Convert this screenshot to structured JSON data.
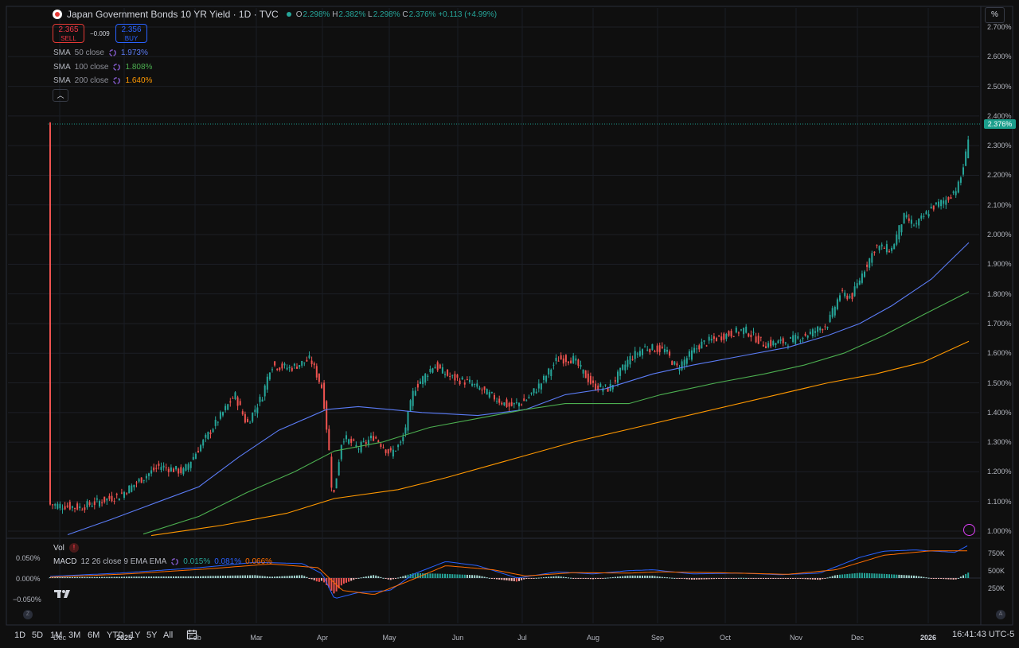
{
  "header": {
    "title": "Japan Government Bonds 10 YR Yield · 1D · TVC",
    "ohlc": {
      "o_label": "O",
      "o": "2.298%",
      "h_label": "H",
      "h": "2.382%",
      "l_label": "L",
      "l": "2.298%",
      "c_label": "C",
      "c": "2.376%",
      "change": "+0.113 (+4.99%)"
    }
  },
  "trade": {
    "sell_price": "2.365",
    "sell_label": "SELL",
    "spread": "−0.009",
    "buy_price": "2.356",
    "buy_label": "BUY"
  },
  "indicators": [
    {
      "name": "SMA",
      "params": "50 close",
      "value": "1.973%",
      "color": "#5b7cf6"
    },
    {
      "name": "SMA",
      "params": "100 close",
      "value": "1.808%",
      "color": "#4caf50"
    },
    {
      "name": "SMA",
      "params": "200 close",
      "value": "1.640%",
      "color": "#ff9800"
    }
  ],
  "price_axis": {
    "unit_button": "%",
    "labels": [
      "2.700%",
      "2.600%",
      "2.500%",
      "2.400%",
      "2.300%",
      "2.200%",
      "2.100%",
      "2.000%",
      "1.900%",
      "1.800%",
      "1.700%",
      "1.600%",
      "1.500%",
      "1.400%",
      "1.300%",
      "1.200%",
      "1.100%",
      "1.000%"
    ],
    "last_price": "2.376%"
  },
  "volume_pane": {
    "label": "Vol",
    "axis": [
      "750K",
      "500K",
      "250K"
    ]
  },
  "macd_pane": {
    "name": "MACD",
    "params": "12 26 close 9 EMA EMA",
    "hist": "0.015%",
    "macd": "0.081%",
    "signal": "0.066%",
    "axis": [
      "0.050%",
      "0.000%",
      "−0.050%"
    ]
  },
  "time_axis": [
    "Dec",
    "2025",
    "Feb",
    "Mar",
    "Apr",
    "May",
    "Jun",
    "Jul",
    "Aug",
    "Sep",
    "Oct",
    "Nov",
    "Dec",
    "2026"
  ],
  "toolbar": {
    "ranges": [
      "1D",
      "5D",
      "1M",
      "3M",
      "6M",
      "YTD",
      "1Y",
      "5Y",
      "All"
    ],
    "clock": "16:41:43 UTC-5",
    "left_corner": "Z",
    "right_corner": "A"
  },
  "colors": {
    "up": "#26a69a",
    "down": "#ef5350",
    "sma50": "#5b7cf6",
    "sma100": "#4caf50",
    "sma200": "#ff9800",
    "macd": "#2962ff",
    "signal": "#ff6d00"
  },
  "icons": [
    "flag-japan-icon",
    "cycle-icon",
    "chevron-up-icon",
    "warning-icon",
    "calendar-icon",
    "tradingview-logo-icon",
    "lightning-icon"
  ]
}
